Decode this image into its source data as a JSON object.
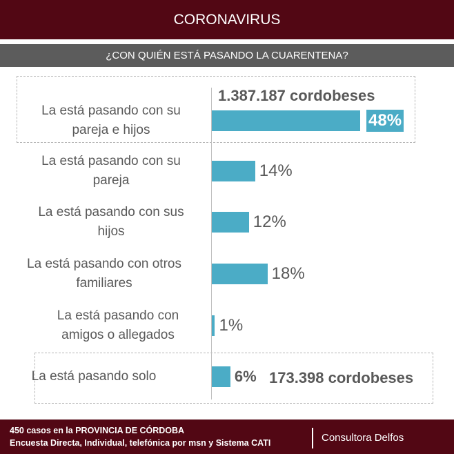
{
  "header": {
    "title": "CORONAVIRUS",
    "subtitle": "¿CON QUIÉN ESTÁ PASANDO LA CUARENTENA?"
  },
  "chart_data": {
    "type": "bar",
    "orientation": "horizontal",
    "categories": [
      "La está pasando con su pareja e hijos",
      "La está pasando con su pareja",
      "La está pasando con sus hijos",
      "La está pasando con otros familiares",
      "La está pasando con amigos o allegados",
      "La está pasando solo"
    ],
    "values": [
      48,
      14,
      12,
      18,
      1,
      6
    ],
    "value_labels": [
      "48%",
      "14%",
      "12%",
      "18%",
      "1%",
      "6%"
    ],
    "annotations": {
      "top": "1.387.187 cordobeses",
      "bottom": "173.398 cordobeses"
    },
    "highlighted": [
      0,
      5
    ],
    "bar_color": "#4bacc6"
  },
  "footer": {
    "line1": "450  casos en la PROVINCIA DE CÓRDOBA",
    "line2": " Encuesta Directa, Individual, telefónica por msn y Sistema CATI",
    "brand": "Consultora Delfos"
  },
  "colors": {
    "header": "#520714",
    "subheader": "#5c5c5c"
  }
}
